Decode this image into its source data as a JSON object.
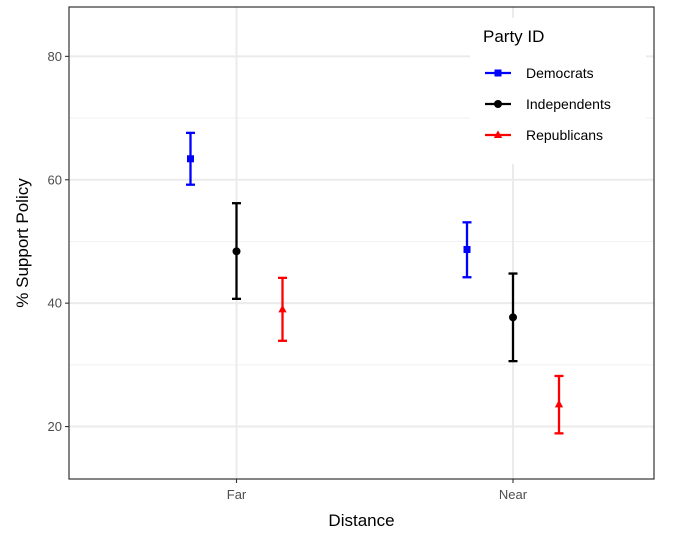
{
  "chart_data": {
    "type": "scatter",
    "xlabel": "Distance",
    "ylabel": "% Support Policy",
    "categories": [
      "Far",
      "Near"
    ],
    "ylim": [
      11.5,
      88
    ],
    "yticks": [
      20,
      40,
      60,
      80
    ],
    "grid": true,
    "legend": {
      "title": "Party ID",
      "position": "top-right"
    },
    "series": [
      {
        "name": "Democrats",
        "color": "#0000ff",
        "marker": "square",
        "values": [
          63.4,
          48.7
        ],
        "lower": [
          59.2,
          44.2
        ],
        "upper": [
          67.6,
          53.1
        ]
      },
      {
        "name": "Independents",
        "color": "#000000",
        "marker": "circle",
        "values": [
          48.4,
          37.7
        ],
        "lower": [
          40.7,
          30.6
        ],
        "upper": [
          56.2,
          44.8
        ]
      },
      {
        "name": "Republicans",
        "color": "#ff0000",
        "marker": "triangle",
        "values": [
          39.0,
          23.6
        ],
        "lower": [
          33.9,
          18.9
        ],
        "upper": [
          44.1,
          28.2
        ]
      }
    ]
  }
}
